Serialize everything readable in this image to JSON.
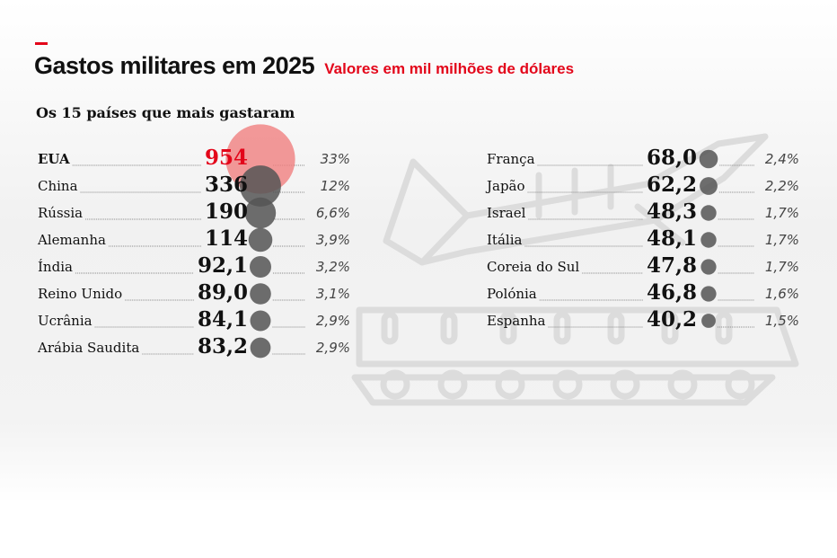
{
  "header": {
    "title": "Gastos militares em 2025",
    "subtitle": "Valores em mil milhões de dólares"
  },
  "section_title": "Os 15 países que mais gastaram",
  "colors": {
    "accent": "#e3061a",
    "bubble": "#555555",
    "bubble_top": "#f08080",
    "leader": "#888888",
    "illustration": "#dcdcdc"
  },
  "icons": [
    "fighter-jet-icon",
    "tank-icon"
  ],
  "chart_data": {
    "type": "bubble-list",
    "title": "Gastos militares em 2025",
    "subtitle": "Valores em mil milhões de dólares",
    "categories": [
      "EUA",
      "China",
      "Rússia",
      "Alemanha",
      "Índia",
      "Reino Unido",
      "Ucrânia",
      "Arábia Saudita",
      "França",
      "Japão",
      "Israel",
      "Itália",
      "Coreia do Sul",
      "Polónia",
      "Espanha"
    ],
    "values": [
      954,
      336,
      190,
      114,
      92.1,
      89.0,
      84.1,
      83.2,
      68.0,
      62.2,
      48.3,
      48.1,
      47.8,
      46.8,
      40.2
    ],
    "value_labels": [
      "954",
      "336",
      "190",
      "114",
      "92,1",
      "89,0",
      "84,1",
      "83,2",
      "68,0",
      "62,2",
      "48,3",
      "48,1",
      "47,8",
      "46,8",
      "40,2"
    ],
    "shares": [
      "33%",
      "12%",
      "6,6%",
      "3,9%",
      "3,2%",
      "3,1%",
      "2,9%",
      "2,9%",
      "2,4%",
      "2,2%",
      "1,7%",
      "1,7%",
      "1,7%",
      "1,6%",
      "1,5%"
    ],
    "columns": 2,
    "highlight": "EUA"
  }
}
